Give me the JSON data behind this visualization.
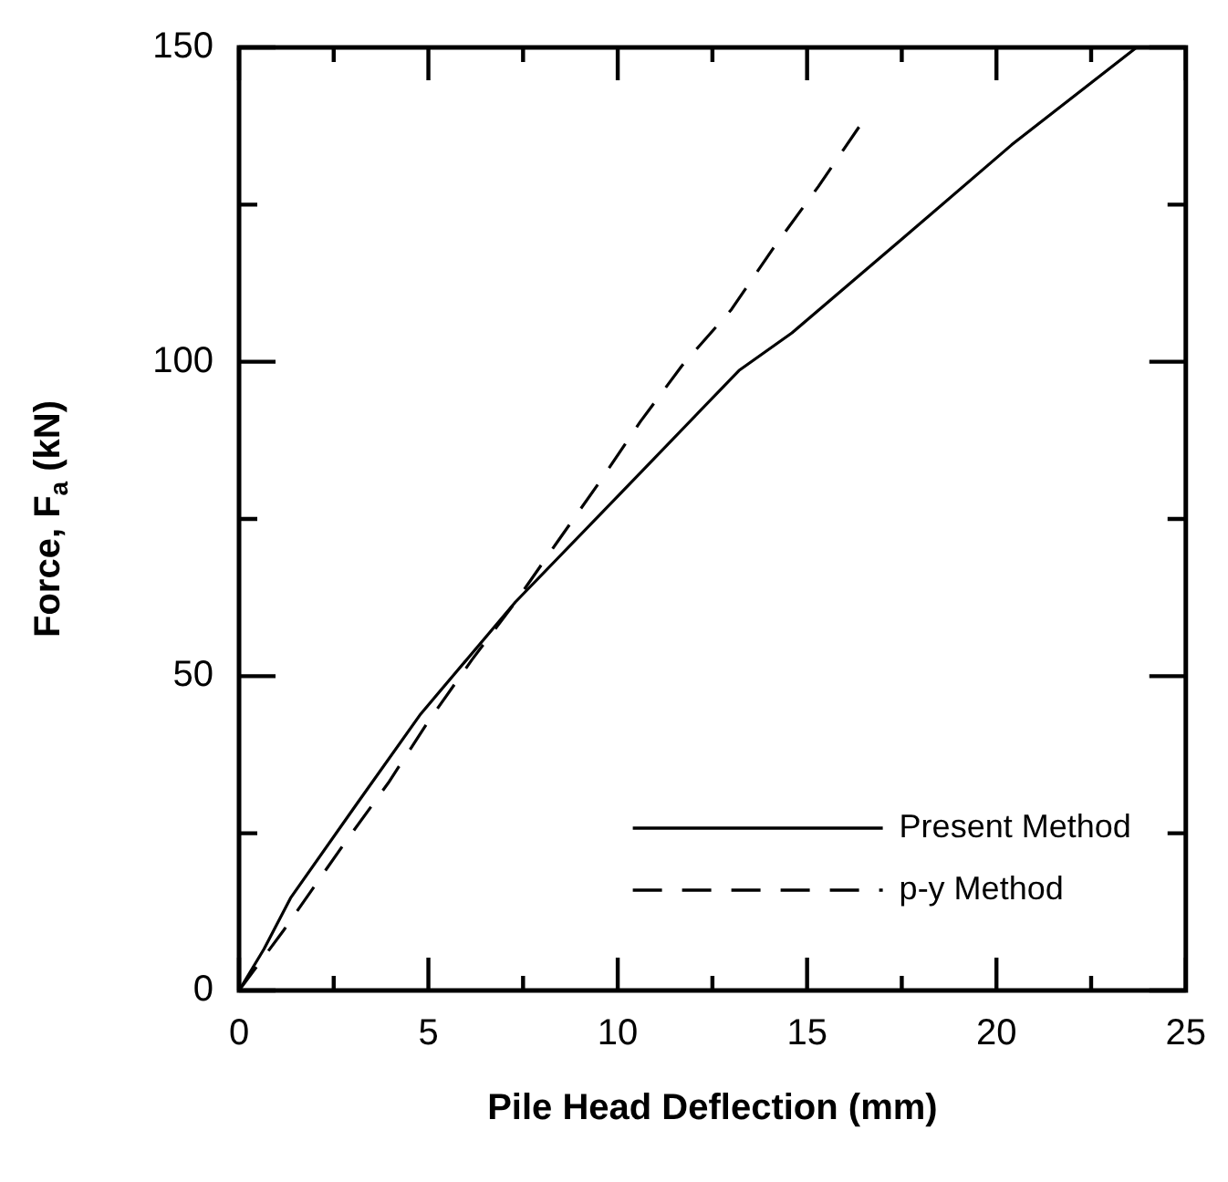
{
  "chart_data": {
    "type": "line",
    "xlabel": "Pile Head Deflection (mm)",
    "ylabel": "Force, F$_{a}$ (kN)",
    "xlim": [
      0,
      25
    ],
    "xticks": [
      0,
      {
        "value": 2.5,
        "label": null
      },
      5,
      {
        "value": 7.5,
        "label": null
      },
      10,
      {
        "value": 12.5,
        "label": null
      },
      15,
      {
        "value": 17.5,
        "label": null
      },
      20,
      {
        "value": 22.5,
        "label": null
      },
      25
    ],
    "ylim": [
      0,
      150
    ],
    "yticks": [
      0,
      {
        "value": 25,
        "label": null
      },
      50,
      {
        "value": 75,
        "label": null
      },
      100,
      {
        "value": 125,
        "label": null
      },
      150
    ],
    "grid": false,
    "legend": "bottom right",
    "marker": "none",
    "series": [
      {
        "name": "Present Method",
        "color": "#000000",
        "line_style": "solid",
        "x": [
          0,
          0.66,
          1.36,
          3.1,
          4.8,
          7.3,
          10,
          13.2,
          14.6,
          17.5,
          20.4,
          23.7
        ],
        "values": [
          0,
          6.6,
          14.7,
          29.6,
          44,
          61.8,
          78.6,
          98.6,
          104.6,
          119.5,
          134.5,
          150
        ]
      },
      {
        "name": "p-y Method",
        "color": "#000000",
        "line_style": "dashed",
        "x": [
          0,
          1.17,
          2.77,
          3.94,
          5.0,
          6.15,
          7.3,
          8.4,
          9.5,
          10.6,
          11.7,
          13.0,
          14.1,
          15.3,
          16.4
        ],
        "values": [
          0,
          9.5,
          23.3,
          33,
          42.8,
          52.6,
          61.8,
          71.3,
          80.7,
          90.5,
          99.4,
          108.3,
          118,
          127.9,
          137.6
        ]
      }
    ]
  }
}
